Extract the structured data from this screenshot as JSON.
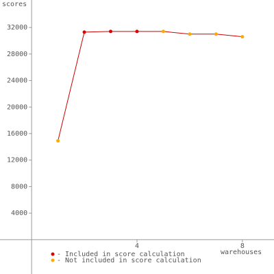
{
  "chart_data": {
    "type": "line",
    "y_label": "scores",
    "x_label": "warehouses",
    "x": [
      1,
      2,
      3,
      4,
      5,
      6,
      7,
      8
    ],
    "values": [
      14900,
      31300,
      31400,
      31400,
      31400,
      31000,
      31000,
      30600
    ],
    "point_groups": [
      1,
      0,
      0,
      0,
      1,
      1,
      1,
      1
    ],
    "groups": [
      {
        "name": "- Included in score calculation",
        "color": "#dd0000"
      },
      {
        "name": "- Not included in score calculation",
        "color": "#ffaa00"
      }
    ],
    "line_color": "#cc0000",
    "xlim": [
      -1.2,
      9.2
    ],
    "xticks": [
      4,
      8
    ],
    "ylim": [
      -5180,
      36145
    ],
    "yticks": [
      4000,
      8000,
      12000,
      16000,
      20000,
      24000,
      28000,
      32000
    ]
  }
}
